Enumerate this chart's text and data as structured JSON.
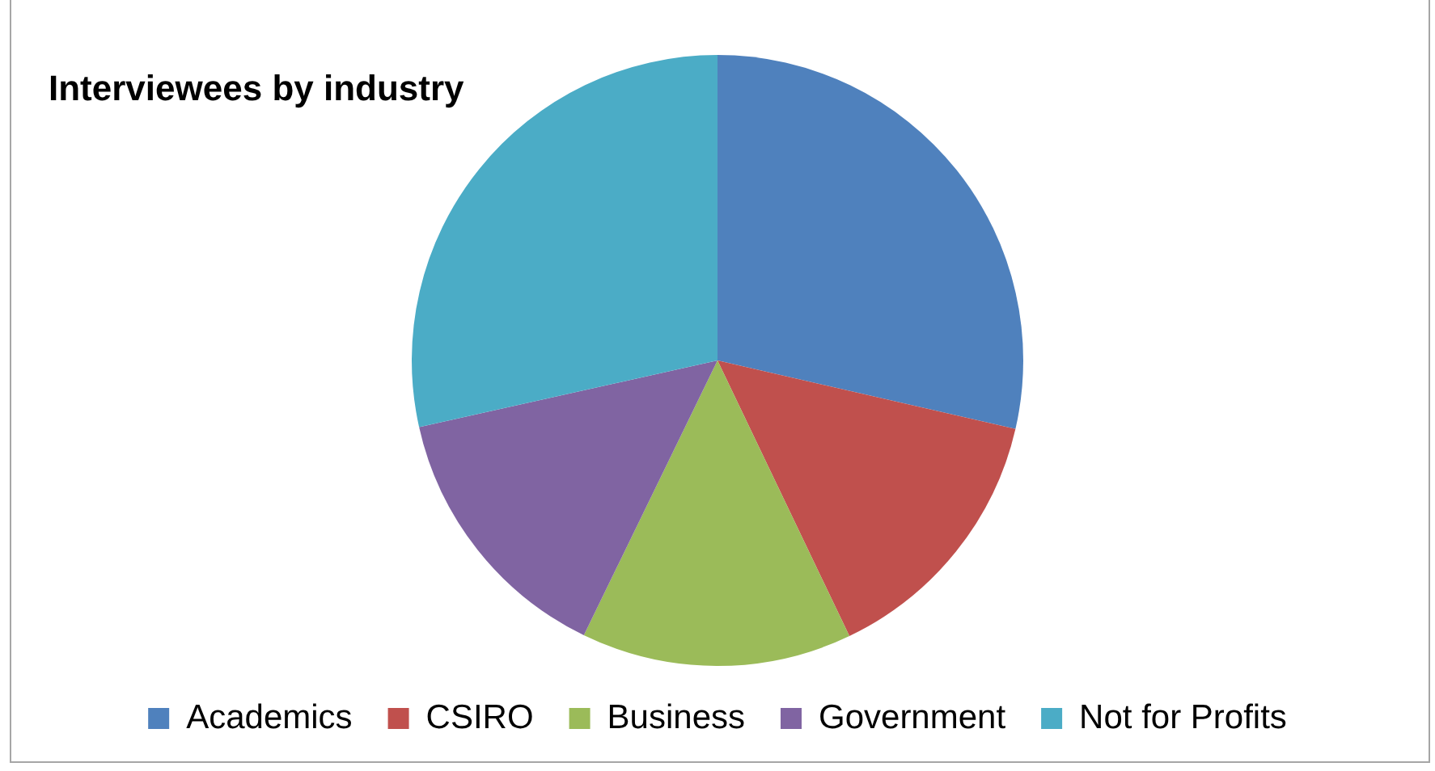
{
  "chart_data": {
    "type": "pie",
    "title": "Interviewees by industry",
    "categories": [
      "Academics",
      "CSIRO",
      "Business",
      "Government",
      "Not for Profits"
    ],
    "values": [
      28.6,
      14.3,
      14.3,
      14.3,
      28.5
    ],
    "colors": [
      "#4f81bd",
      "#c0504d",
      "#9bbb59",
      "#8064a2",
      "#4bacc6"
    ],
    "legend": "bottom"
  }
}
